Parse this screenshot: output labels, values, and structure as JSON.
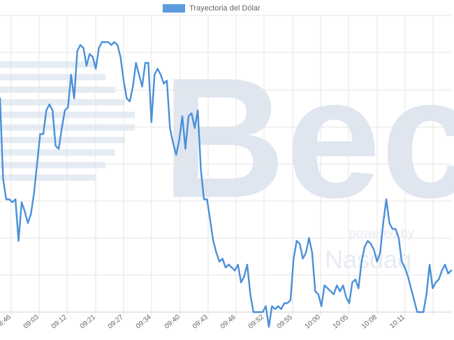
{
  "chart_data": {
    "type": "line",
    "legend": {
      "label": "Trayectoria del Dólar",
      "color": "#5b9be0",
      "position": "top-center"
    },
    "grid": true,
    "watermark": {
      "main": "Bec",
      "sub_powered": "powered by",
      "sub_brand": "Nasdaq"
    },
    "x_tick_labels": [
      "08:46",
      "09:03",
      "09:12",
      "09:21",
      "09:27",
      "09:34",
      "09:40",
      "09:43",
      "09:46",
      "09:52",
      "09:55",
      "10:00",
      "10:05",
      "10:08",
      "10:11"
    ],
    "y_range": [
      0,
      100
    ],
    "series": [
      {
        "color": "#4a90d9",
        "values": [
          72,
          45,
          38,
          38,
          37,
          38,
          24,
          37,
          34,
          30,
          33,
          40,
          50,
          60,
          60,
          68,
          70,
          68,
          56,
          55,
          62,
          68,
          69,
          80,
          72,
          88,
          90,
          89,
          83,
          87,
          86,
          82,
          89,
          91,
          91,
          91,
          90,
          91,
          90,
          86,
          78,
          72,
          71,
          76,
          84,
          80,
          76,
          84,
          84,
          64,
          80,
          82,
          80,
          77,
          78,
          62,
          57,
          53,
          58,
          66,
          55,
          66,
          67,
          62,
          68,
          48,
          38,
          38,
          31,
          24,
          20,
          17,
          18,
          15,
          16,
          15,
          14,
          16,
          10,
          12,
          16,
          6,
          0,
          0,
          0,
          0,
          2,
          -5,
          2,
          1,
          2,
          1,
          3,
          3,
          4,
          18,
          24,
          23,
          18,
          20,
          25,
          20,
          7,
          6,
          2,
          9,
          8,
          7,
          6,
          9,
          7,
          9,
          5,
          3,
          10,
          11,
          8,
          17,
          22,
          24,
          23,
          21,
          17,
          20,
          30,
          38,
          30,
          28,
          28,
          25,
          17,
          15,
          12,
          8,
          4,
          0,
          0,
          0,
          6,
          16,
          8,
          10,
          11,
          14,
          16,
          13,
          14
        ]
      }
    ]
  }
}
